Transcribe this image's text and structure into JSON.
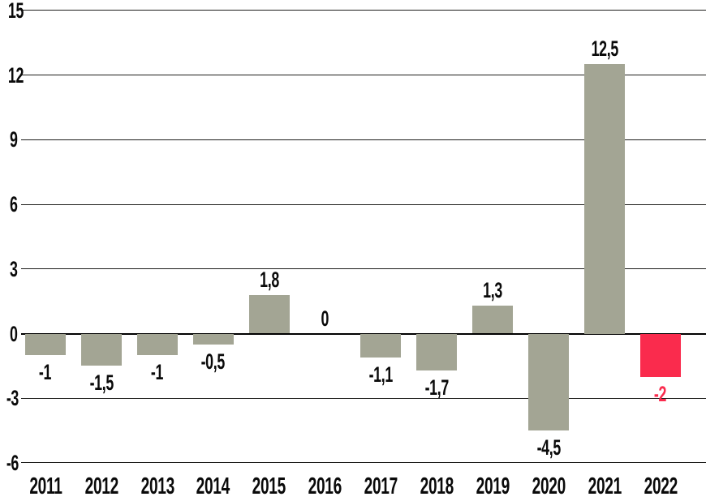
{
  "chart_data": {
    "type": "bar",
    "title": "",
    "xlabel": "",
    "ylabel": "",
    "categories": [
      "2011",
      "2012",
      "2013",
      "2014",
      "2015",
      "2016",
      "2017",
      "2018",
      "2019",
      "2020",
      "2021",
      "2022"
    ],
    "values": [
      -1,
      -1.5,
      -1,
      -0.5,
      1.8,
      0,
      -1.1,
      -1.7,
      1.3,
      -4.5,
      12.5,
      -2
    ],
    "value_labels": [
      "-1",
      "-1,5",
      "-1",
      "-0,5",
      "1,8",
      "0",
      "-1,1",
      "-1,7",
      "1,3",
      "-4,5",
      "12,5",
      "-2"
    ],
    "decimal_separator": ",",
    "highlight_index": 11,
    "yticks": [
      15,
      12,
      9,
      6,
      3,
      0,
      -3,
      -6
    ],
    "ytick_labels": [
      "15",
      "12",
      "9",
      "6",
      "3",
      "0",
      "-3",
      "-6"
    ],
    "ylim": [
      -6,
      15
    ],
    "grid": "horizontal",
    "legend": "none",
    "colors": {
      "bar_default": "#a3a594",
      "bar_highlight": "#fa2b4d",
      "label_default": "#0a0a0a",
      "label_highlight": "#fa2b4d",
      "gridline": "#1d1d1b",
      "zero_line": "#000000",
      "background": "#ffffff"
    }
  }
}
